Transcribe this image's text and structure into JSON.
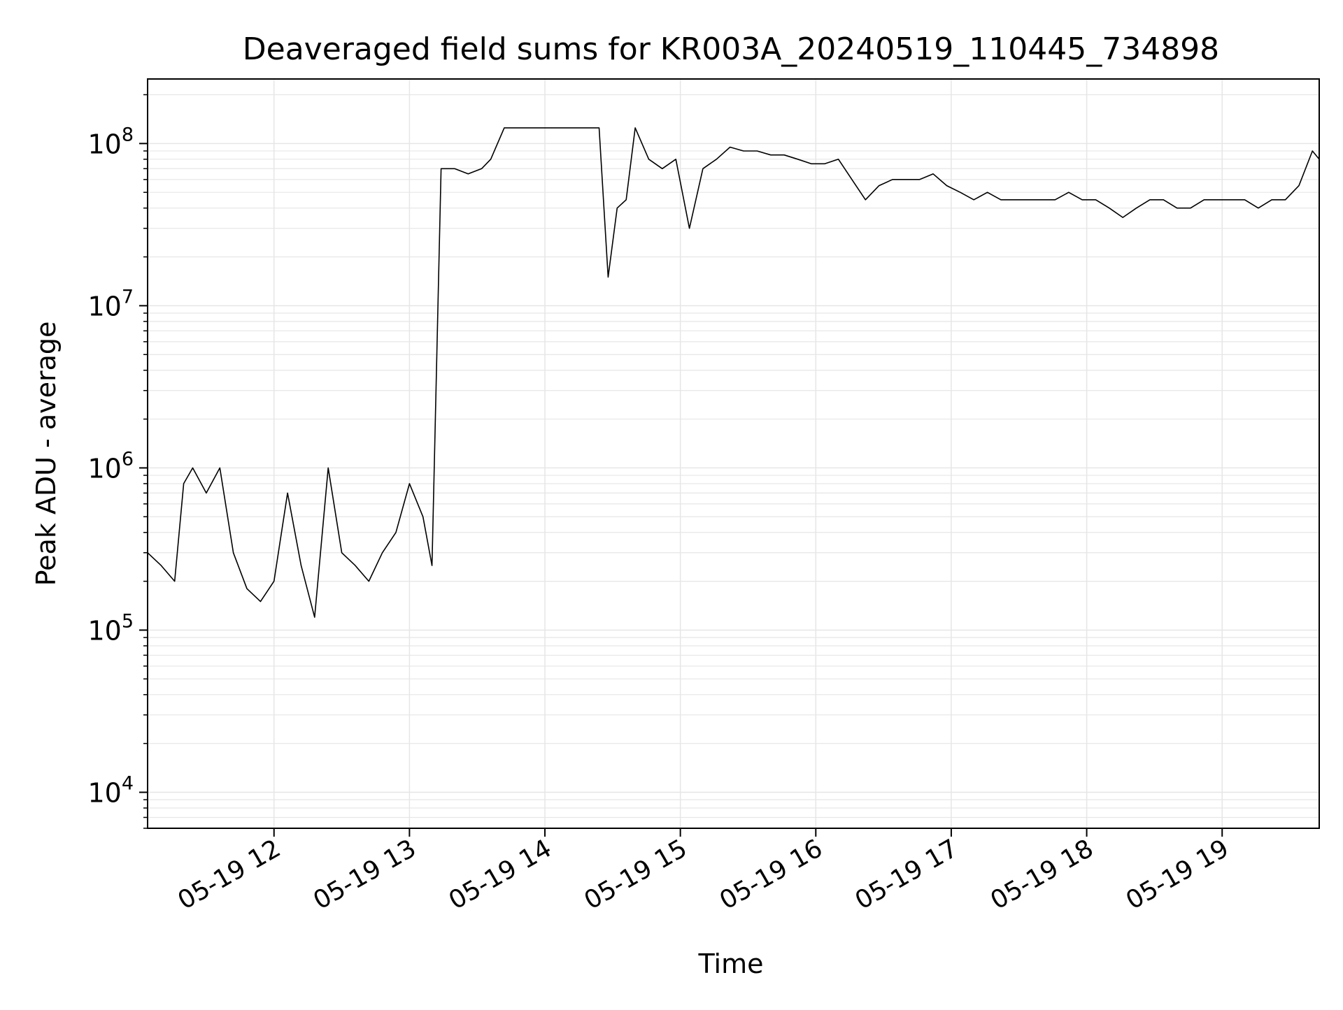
{
  "chart_data": {
    "type": "line",
    "title": "Deaveraged field sums for KR003A_20240519_110445_734898",
    "xlabel": "Time",
    "ylabel": "Peak ADU - average",
    "yscale": "log",
    "ylim": [
      6000,
      250000000
    ],
    "xlim": [
      "2024-05-19 11:04",
      "2024-05-19 19:43"
    ],
    "x_ticks": [
      "2024-05-19 12:00",
      "2024-05-19 13:00",
      "2024-05-19 14:00",
      "2024-05-19 15:00",
      "2024-05-19 16:00",
      "2024-05-19 17:00",
      "2024-05-19 18:00",
      "2024-05-19 19:00"
    ],
    "x_tick_labels": [
      "05-19 12",
      "05-19 13",
      "05-19 14",
      "05-19 15",
      "05-19 16",
      "05-19 17",
      "05-19 18",
      "05-19 19"
    ],
    "y_ticks": [
      10000,
      100000,
      1000000,
      10000000,
      100000000
    ],
    "y_tick_labels": [
      {
        "base": "10",
        "exp": "4"
      },
      {
        "base": "10",
        "exp": "5"
      },
      {
        "base": "10",
        "exp": "6"
      },
      {
        "base": "10",
        "exp": "7"
      },
      {
        "base": "10",
        "exp": "8"
      }
    ],
    "grid": true,
    "line_color": "#000000",
    "grid_color": "#e6e6e6",
    "series": [
      {
        "x": [
          "2024-05-19 11:04",
          "2024-05-19 11:10",
          "2024-05-19 11:16",
          "2024-05-19 11:20",
          "2024-05-19 11:24",
          "2024-05-19 11:30",
          "2024-05-19 11:36",
          "2024-05-19 11:42",
          "2024-05-19 11:48",
          "2024-05-19 11:54",
          "2024-05-19 12:00",
          "2024-05-19 12:06",
          "2024-05-19 12:12",
          "2024-05-19 12:18",
          "2024-05-19 12:24",
          "2024-05-19 12:30",
          "2024-05-19 12:36",
          "2024-05-19 12:42",
          "2024-05-19 12:48",
          "2024-05-19 12:54",
          "2024-05-19 13:00",
          "2024-05-19 13:06",
          "2024-05-19 13:10",
          "2024-05-19 13:14",
          "2024-05-19 13:20",
          "2024-05-19 13:26",
          "2024-05-19 13:32",
          "2024-05-19 13:36",
          "2024-05-19 13:42",
          "2024-05-19 13:48",
          "2024-05-19 13:54",
          "2024-05-19 14:00",
          "2024-05-19 14:06",
          "2024-05-19 14:12",
          "2024-05-19 14:18",
          "2024-05-19 14:24",
          "2024-05-19 14:28",
          "2024-05-19 14:32",
          "2024-05-19 14:36",
          "2024-05-19 14:40",
          "2024-05-19 14:46",
          "2024-05-19 14:52",
          "2024-05-19 14:58",
          "2024-05-19 15:04",
          "2024-05-19 15:10",
          "2024-05-19 15:16",
          "2024-05-19 15:22",
          "2024-05-19 15:28",
          "2024-05-19 15:34",
          "2024-05-19 15:40",
          "2024-05-19 15:46",
          "2024-05-19 15:52",
          "2024-05-19 15:58",
          "2024-05-19 16:04",
          "2024-05-19 16:10",
          "2024-05-19 16:16",
          "2024-05-19 16:22",
          "2024-05-19 16:28",
          "2024-05-19 16:34",
          "2024-05-19 16:40",
          "2024-05-19 16:46",
          "2024-05-19 16:52",
          "2024-05-19 16:58",
          "2024-05-19 17:04",
          "2024-05-19 17:10",
          "2024-05-19 17:16",
          "2024-05-19 17:22",
          "2024-05-19 17:28",
          "2024-05-19 17:34",
          "2024-05-19 17:40",
          "2024-05-19 17:46",
          "2024-05-19 17:52",
          "2024-05-19 17:58",
          "2024-05-19 18:04",
          "2024-05-19 18:10",
          "2024-05-19 18:16",
          "2024-05-19 18:22",
          "2024-05-19 18:28",
          "2024-05-19 18:34",
          "2024-05-19 18:40",
          "2024-05-19 18:46",
          "2024-05-19 18:52",
          "2024-05-19 18:58",
          "2024-05-19 19:04",
          "2024-05-19 19:10",
          "2024-05-19 19:16",
          "2024-05-19 19:22",
          "2024-05-19 19:28",
          "2024-05-19 19:34",
          "2024-05-19 19:40",
          "2024-05-19 19:43"
        ],
        "y": [
          300000,
          250000,
          200000,
          800000,
          1000000,
          700000,
          1000000,
          300000,
          180000,
          150000,
          200000,
          700000,
          250000,
          120000,
          1000000,
          300000,
          250000,
          200000,
          300000,
          400000,
          800000,
          500000,
          250000,
          70000000,
          70000000,
          65000000,
          70000000,
          80000000,
          125000000,
          125000000,
          125000000,
          125000000,
          125000000,
          125000000,
          125000000,
          125000000,
          15000000,
          40000000,
          45000000,
          125000000,
          80000000,
          70000000,
          80000000,
          30000000,
          70000000,
          80000000,
          95000000,
          90000000,
          90000000,
          85000000,
          85000000,
          80000000,
          75000000,
          75000000,
          80000000,
          60000000,
          45000000,
          55000000,
          60000000,
          60000000,
          60000000,
          65000000,
          55000000,
          50000000,
          45000000,
          50000000,
          45000000,
          45000000,
          45000000,
          45000000,
          45000000,
          50000000,
          45000000,
          45000000,
          40000000,
          35000000,
          40000000,
          45000000,
          45000000,
          40000000,
          40000000,
          45000000,
          45000000,
          45000000,
          45000000,
          40000000,
          45000000,
          45000000,
          55000000,
          90000000,
          80000000
        ]
      }
    ]
  }
}
